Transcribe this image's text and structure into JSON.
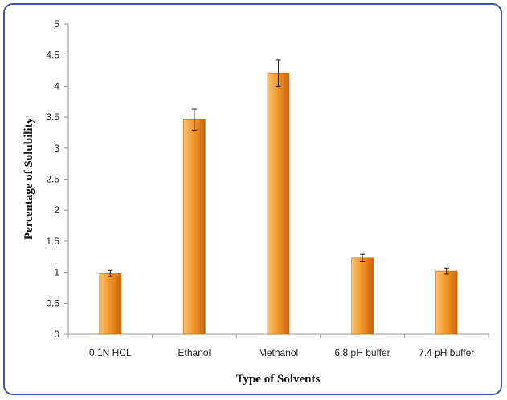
{
  "chart_data": {
    "type": "bar",
    "title": "",
    "xlabel": "Type of Solvents",
    "ylabel": "Percentage of Solubility",
    "categories": [
      "0.1N HCL",
      "Ethanol",
      "Methanol",
      "6.8 pH buffer",
      "7.4 pH buffer"
    ],
    "values": [
      0.98,
      3.46,
      4.21,
      1.23,
      1.02
    ],
    "error": [
      0.05,
      0.17,
      0.21,
      0.06,
      0.05
    ],
    "ylim": [
      0,
      5
    ],
    "yticks": [
      "0",
      "0.5",
      "1",
      "1.5",
      "2",
      "2.5",
      "3",
      "3.5",
      "4",
      "4.5",
      "5"
    ],
    "grid": false,
    "legend": "none",
    "colors": {
      "bar_light": "#f9c374",
      "bar_mid": "#f2982c",
      "bar_dark": "#c8650d",
      "frame": "#3f56a8",
      "axis": "#9a9a9a"
    }
  }
}
